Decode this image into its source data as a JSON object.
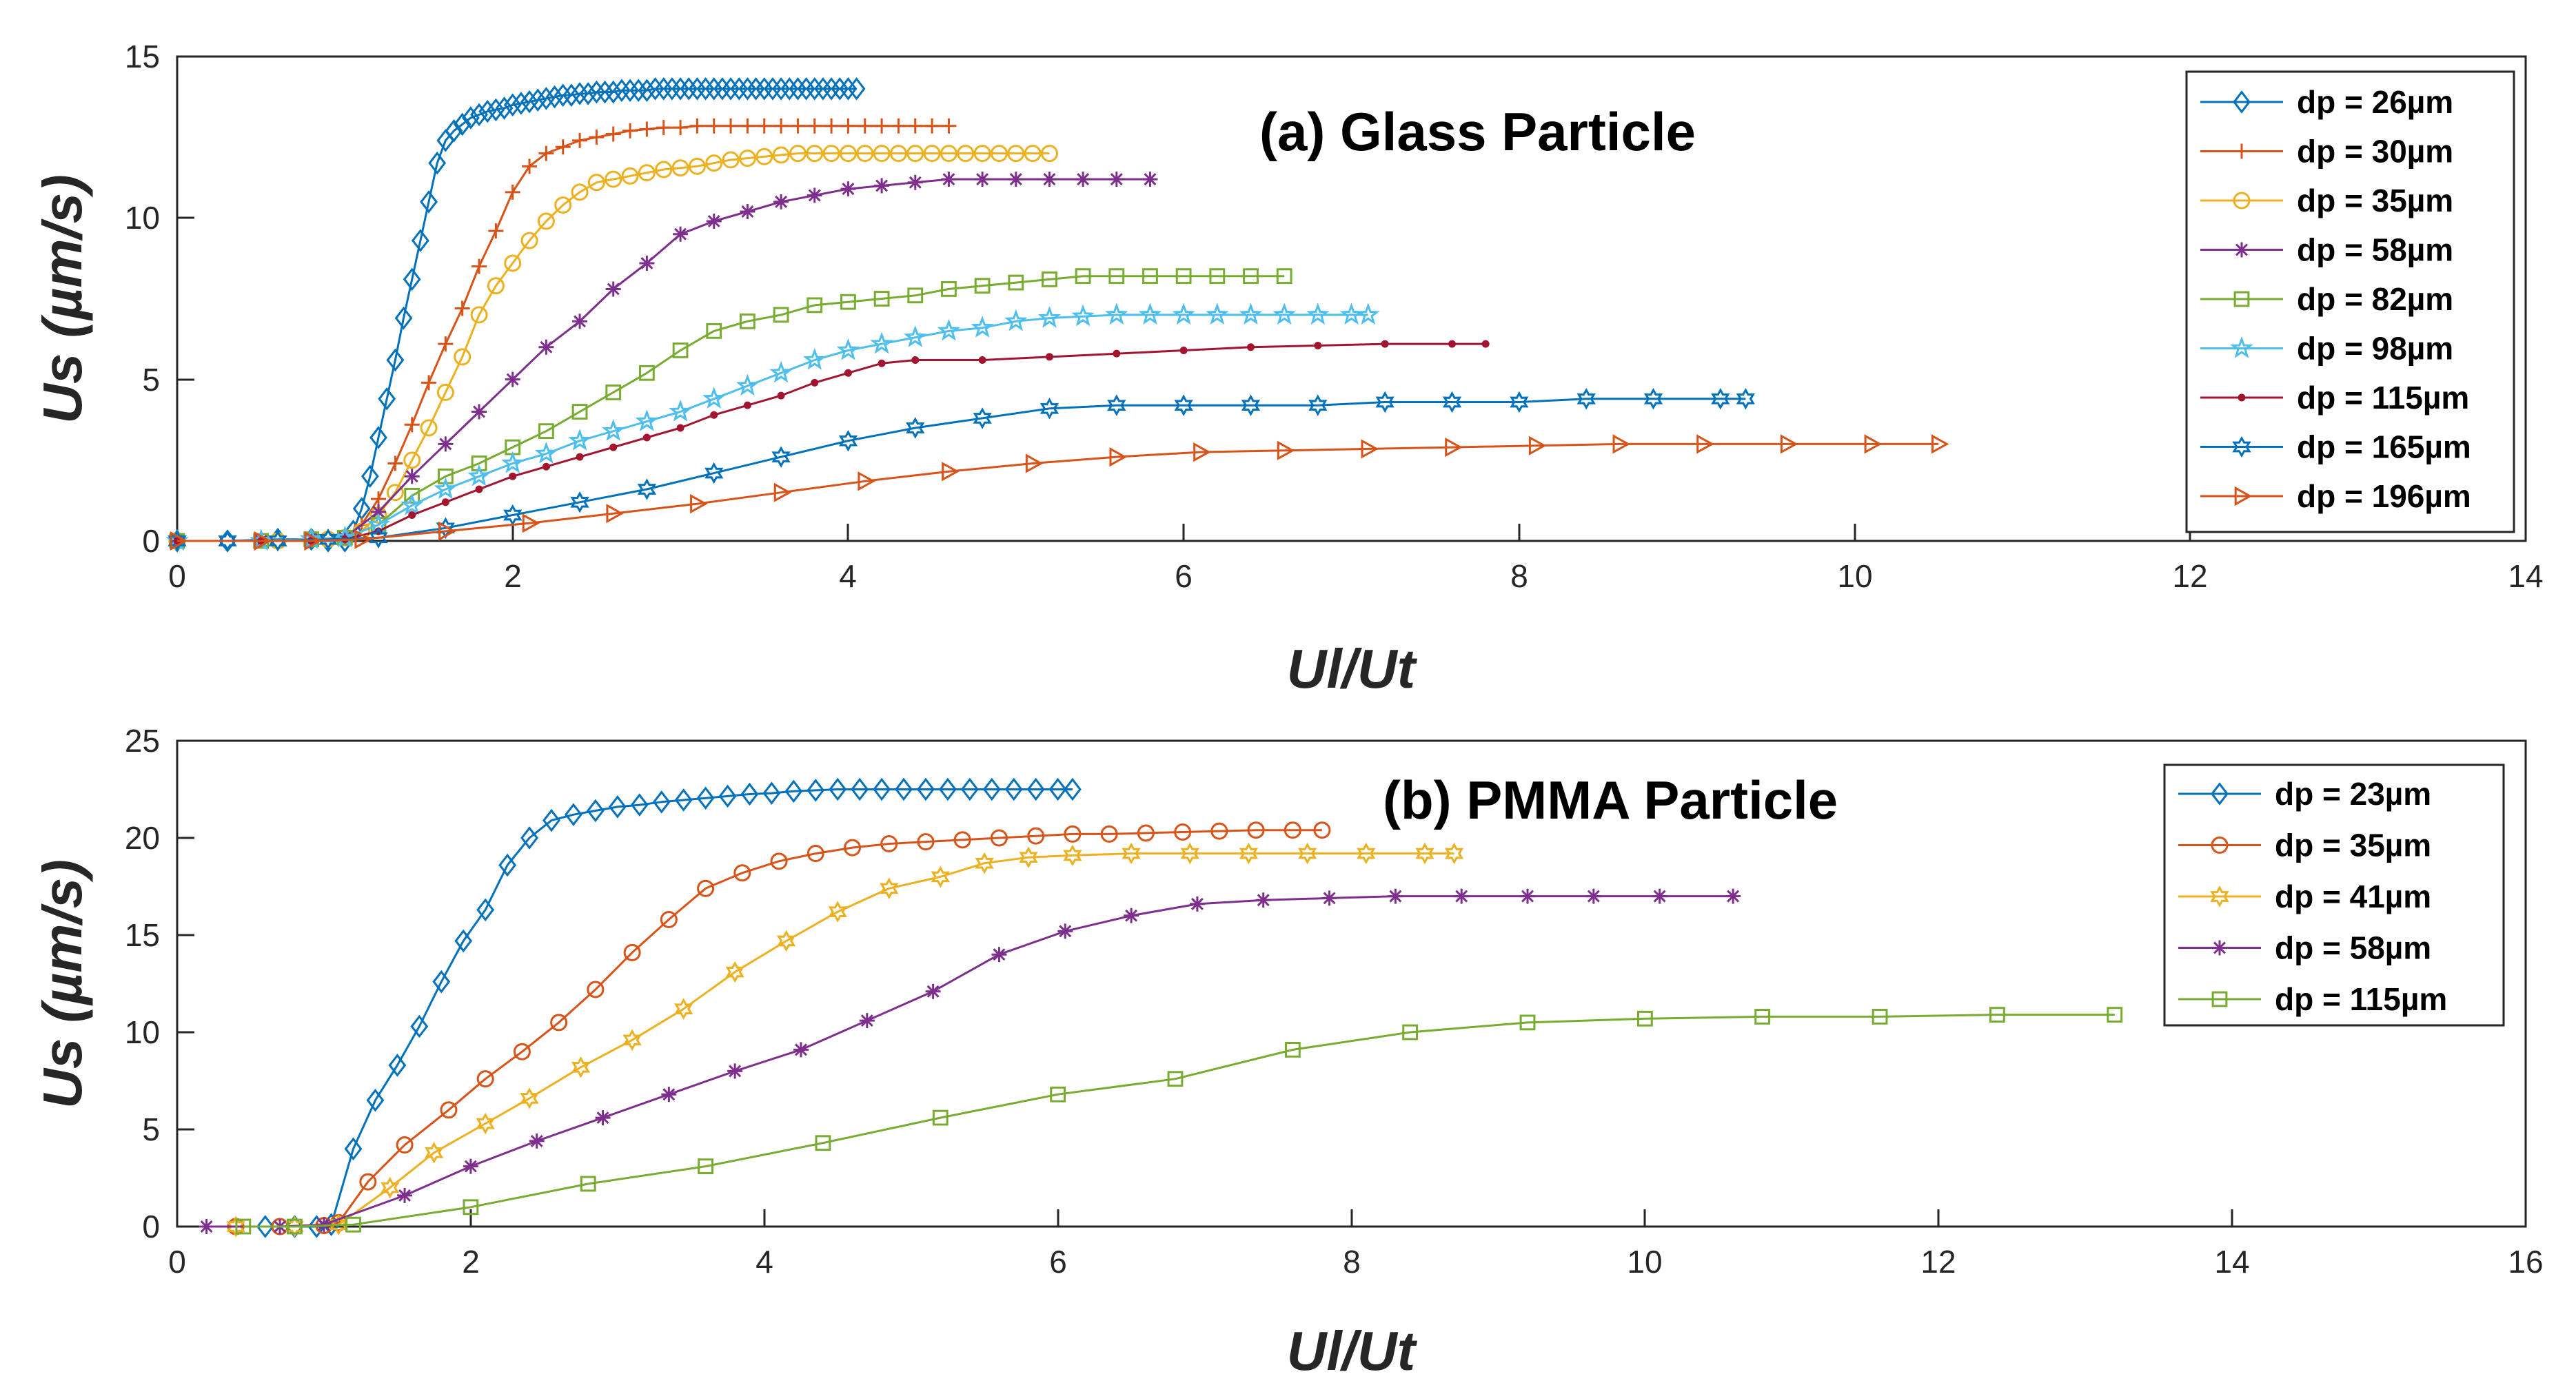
{
  "chart_data": [
    {
      "type": "line",
      "title": "(a) Glass Particle",
      "xlabel": "Ul/Ut",
      "ylabel": "Us (µm/s)",
      "xlim": [
        0,
        14
      ],
      "ylim": [
        0,
        15
      ],
      "xticks": [
        "0",
        "2",
        "4",
        "6",
        "8",
        "10",
        "12",
        "14"
      ],
      "yticks": [
        "0",
        "5",
        "10",
        "15"
      ],
      "legend_position": "top-right",
      "series": [
        {
          "name": "dp = 26µm",
          "color": "#0072BD",
          "marker": "diamond",
          "x": [
            0.0,
            0.3,
            0.6,
            0.8,
            0.9,
            1.0,
            1.05,
            1.1,
            1.15,
            1.2,
            1.25,
            1.3,
            1.35,
            1.4,
            1.45,
            1.5,
            1.55,
            1.6,
            1.65,
            1.7,
            1.75,
            1.8,
            1.85,
            1.9,
            1.95,
            2.0,
            2.05,
            2.1,
            2.15,
            2.2,
            2.25,
            2.3,
            2.35,
            2.4,
            2.45,
            2.5,
            2.55,
            2.6,
            2.65,
            2.7,
            2.75,
            2.8,
            2.85,
            2.9,
            2.95,
            3.0,
            3.05,
            3.1,
            3.15,
            3.2,
            3.25,
            3.3,
            3.35,
            3.4,
            3.45,
            3.5,
            3.55,
            3.6,
            3.65,
            3.7,
            3.75,
            3.8,
            3.85,
            3.9,
            3.95,
            4.0,
            4.05
          ],
          "y": [
            0.0,
            0.0,
            0.05,
            0.05,
            0.0,
            0.0,
            0.3,
            1.0,
            2.0,
            3.2,
            4.4,
            5.6,
            6.9,
            8.1,
            9.3,
            10.5,
            11.7,
            12.4,
            12.7,
            12.9,
            13.1,
            13.2,
            13.3,
            13.35,
            13.4,
            13.5,
            13.55,
            13.6,
            13.65,
            13.7,
            13.75,
            13.8,
            13.8,
            13.85,
            13.85,
            13.9,
            13.9,
            13.9,
            13.95,
            13.95,
            13.95,
            13.95,
            14.0,
            14.0,
            14.0,
            14.0,
            14.0,
            14.0,
            14.0,
            14.0,
            14.0,
            14.0,
            14.0,
            14.0,
            14.0,
            14.0,
            14.0,
            14.0,
            14.0,
            14.0,
            14.0,
            14.0,
            14.0,
            14.0,
            14.0,
            14.0,
            14.0
          ]
        },
        {
          "name": "dp = 30µm",
          "color": "#D95319",
          "marker": "plus",
          "x": [
            0.0,
            0.5,
            0.8,
            1.0,
            1.1,
            1.2,
            1.3,
            1.4,
            1.5,
            1.6,
            1.7,
            1.8,
            1.9,
            2.0,
            2.1,
            2.2,
            2.3,
            2.4,
            2.5,
            2.6,
            2.7,
            2.8,
            2.9,
            3.0,
            3.1,
            3.2,
            3.3,
            3.4,
            3.5,
            3.6,
            3.7,
            3.8,
            3.9,
            4.0,
            4.1,
            4.2,
            4.3,
            4.4,
            4.5,
            4.6
          ],
          "y": [
            0.0,
            0.0,
            0.05,
            0.1,
            0.5,
            1.3,
            2.4,
            3.6,
            4.9,
            6.1,
            7.2,
            8.5,
            9.6,
            10.8,
            11.6,
            12.0,
            12.2,
            12.4,
            12.5,
            12.6,
            12.7,
            12.75,
            12.8,
            12.8,
            12.85,
            12.85,
            12.85,
            12.85,
            12.85,
            12.85,
            12.85,
            12.85,
            12.85,
            12.85,
            12.85,
            12.85,
            12.85,
            12.85,
            12.85,
            12.85
          ]
        },
        {
          "name": "dp = 35µm",
          "color": "#EDB120",
          "marker": "circle",
          "x": [
            0.0,
            0.6,
            0.9,
            1.0,
            1.1,
            1.2,
            1.3,
            1.4,
            1.5,
            1.6,
            1.7,
            1.8,
            1.9,
            2.0,
            2.1,
            2.2,
            2.3,
            2.4,
            2.5,
            2.6,
            2.7,
            2.8,
            2.9,
            3.0,
            3.1,
            3.2,
            3.3,
            3.4,
            3.5,
            3.6,
            3.7,
            3.8,
            3.9,
            4.0,
            4.1,
            4.2,
            4.3,
            4.4,
            4.5,
            4.6,
            4.7,
            4.8,
            4.9,
            5.0,
            5.1,
            5.2
          ],
          "y": [
            0.0,
            0.0,
            0.05,
            0.1,
            0.3,
            0.8,
            1.5,
            2.5,
            3.5,
            4.6,
            5.7,
            7.0,
            7.9,
            8.6,
            9.3,
            9.9,
            10.4,
            10.8,
            11.1,
            11.2,
            11.3,
            11.4,
            11.5,
            11.55,
            11.6,
            11.7,
            11.8,
            11.85,
            11.9,
            11.95,
            12.0,
            12.0,
            12.0,
            12.0,
            12.0,
            12.0,
            12.0,
            12.0,
            12.0,
            12.0,
            12.0,
            12.0,
            12.0,
            12.0,
            12.0,
            12.0
          ]
        },
        {
          "name": "dp = 58µm",
          "color": "#7E2F8E",
          "marker": "asterisk",
          "x": [
            0.0,
            0.5,
            0.8,
            1.0,
            1.2,
            1.4,
            1.6,
            1.8,
            2.0,
            2.2,
            2.4,
            2.6,
            2.8,
            3.0,
            3.2,
            3.4,
            3.6,
            3.8,
            4.0,
            4.2,
            4.4,
            4.6,
            4.8,
            5.0,
            5.2,
            5.4,
            5.6,
            5.8
          ],
          "y": [
            0.0,
            0.0,
            0.05,
            0.1,
            0.9,
            2.0,
            3.0,
            4.0,
            5.0,
            6.0,
            6.8,
            7.8,
            8.6,
            9.5,
            9.9,
            10.2,
            10.5,
            10.7,
            10.9,
            11.0,
            11.1,
            11.2,
            11.2,
            11.2,
            11.2,
            11.2,
            11.2,
            11.2
          ]
        },
        {
          "name": "dp = 82µm",
          "color": "#77AC30",
          "marker": "square",
          "x": [
            0.0,
            0.5,
            0.8,
            1.0,
            1.2,
            1.4,
            1.6,
            1.8,
            2.0,
            2.2,
            2.4,
            2.6,
            2.8,
            3.0,
            3.2,
            3.4,
            3.6,
            3.8,
            4.0,
            4.2,
            4.4,
            4.6,
            4.8,
            5.0,
            5.2,
            5.4,
            5.6,
            5.8,
            6.0,
            6.2,
            6.4,
            6.6
          ],
          "y": [
            0.0,
            0.0,
            0.05,
            0.1,
            0.5,
            1.4,
            2.0,
            2.4,
            2.9,
            3.4,
            4.0,
            4.6,
            5.2,
            5.9,
            6.5,
            6.8,
            7.0,
            7.3,
            7.4,
            7.5,
            7.6,
            7.8,
            7.9,
            8.0,
            8.1,
            8.2,
            8.2,
            8.2,
            8.2,
            8.2,
            8.2,
            8.2
          ]
        },
        {
          "name": "dp = 98µm",
          "color": "#4DBEEE",
          "marker": "star",
          "x": [
            0.0,
            0.5,
            0.8,
            1.0,
            1.2,
            1.4,
            1.6,
            1.8,
            2.0,
            2.2,
            2.4,
            2.6,
            2.8,
            3.0,
            3.2,
            3.4,
            3.6,
            3.8,
            4.0,
            4.2,
            4.4,
            4.6,
            4.8,
            5.0,
            5.2,
            5.4,
            5.6,
            5.8,
            6.0,
            6.2,
            6.4,
            6.6,
            6.8,
            7.0,
            7.1
          ],
          "y": [
            0.0,
            0.0,
            0.05,
            0.1,
            0.5,
            1.1,
            1.6,
            2.0,
            2.4,
            2.7,
            3.1,
            3.4,
            3.7,
            4.0,
            4.4,
            4.8,
            5.2,
            5.6,
            5.9,
            6.1,
            6.3,
            6.5,
            6.6,
            6.8,
            6.9,
            6.95,
            7.0,
            7.0,
            7.0,
            7.0,
            7.0,
            7.0,
            7.0,
            7.0,
            7.0
          ]
        },
        {
          "name": "dp = 115µm",
          "color": "#A2142F",
          "marker": "point",
          "x": [
            0.0,
            0.5,
            0.8,
            1.0,
            1.2,
            1.4,
            1.6,
            1.8,
            2.0,
            2.2,
            2.4,
            2.6,
            2.8,
            3.0,
            3.2,
            3.4,
            3.6,
            3.8,
            4.0,
            4.2,
            4.4,
            4.8,
            5.2,
            5.6,
            6.0,
            6.4,
            6.8,
            7.2,
            7.6,
            7.8
          ],
          "y": [
            0.0,
            0.0,
            0.0,
            0.05,
            0.3,
            0.8,
            1.2,
            1.6,
            2.0,
            2.3,
            2.6,
            2.9,
            3.2,
            3.5,
            3.9,
            4.2,
            4.5,
            4.9,
            5.2,
            5.5,
            5.6,
            5.6,
            5.7,
            5.8,
            5.9,
            6.0,
            6.05,
            6.1,
            6.1,
            6.1
          ]
        },
        {
          "name": "dp = 165µm",
          "color": "#0072BD",
          "marker": "hexagram",
          "x": [
            0.0,
            0.3,
            0.6,
            0.9,
            1.2,
            1.6,
            2.0,
            2.4,
            2.8,
            3.2,
            3.6,
            4.0,
            4.4,
            4.8,
            5.2,
            5.6,
            6.0,
            6.4,
            6.8,
            7.2,
            7.6,
            8.0,
            8.4,
            8.8,
            9.2,
            9.35
          ],
          "y": [
            0.0,
            0.0,
            0.0,
            0.05,
            0.1,
            0.4,
            0.8,
            1.2,
            1.6,
            2.1,
            2.6,
            3.1,
            3.5,
            3.8,
            4.1,
            4.2,
            4.2,
            4.2,
            4.2,
            4.3,
            4.3,
            4.3,
            4.4,
            4.4,
            4.4,
            4.4
          ]
        },
        {
          "name": "dp = 196µm",
          "color": "#D95319",
          "marker": "triangle-right",
          "x": [
            0.0,
            0.5,
            0.8,
            1.1,
            1.6,
            2.1,
            2.6,
            3.1,
            3.6,
            4.1,
            4.6,
            5.1,
            5.6,
            6.1,
            6.6,
            7.1,
            7.6,
            8.1,
            8.6,
            9.1,
            9.6,
            10.1,
            10.5
          ],
          "y": [
            0.0,
            0.0,
            0.0,
            0.05,
            0.3,
            0.55,
            0.85,
            1.15,
            1.5,
            1.85,
            2.15,
            2.4,
            2.6,
            2.75,
            2.8,
            2.85,
            2.9,
            2.95,
            3.0,
            3.0,
            3.0,
            3.0,
            3.0
          ]
        }
      ]
    },
    {
      "type": "line",
      "title": "(b) PMMA Particle",
      "xlabel": "Ul/Ut",
      "ylabel": "Us (µm/s)",
      "xlim": [
        0,
        16
      ],
      "ylim": [
        0,
        25
      ],
      "xticks": [
        "0",
        "2",
        "4",
        "6",
        "8",
        "10",
        "12",
        "14",
        "16"
      ],
      "yticks": [
        "0",
        "5",
        "10",
        "15",
        "20",
        "25"
      ],
      "legend_position": "top-right",
      "series": [
        {
          "name": "dp = 23µm",
          "color": "#0072BD",
          "marker": "diamond",
          "x": [
            0.6,
            0.8,
            0.95,
            1.05,
            1.2,
            1.35,
            1.5,
            1.65,
            1.8,
            1.95,
            2.1,
            2.25,
            2.4,
            2.55,
            2.7,
            2.85,
            3.0,
            3.15,
            3.3,
            3.45,
            3.6,
            3.75,
            3.9,
            4.05,
            4.2,
            4.35,
            4.5,
            4.65,
            4.8,
            4.95,
            5.1,
            5.25,
            5.4,
            5.55,
            5.7,
            5.85,
            6.0,
            6.1
          ],
          "y": [
            0.0,
            0.0,
            0.0,
            0.1,
            4.0,
            6.5,
            8.3,
            10.3,
            12.6,
            14.7,
            16.3,
            18.6,
            20.0,
            20.9,
            21.2,
            21.4,
            21.6,
            21.7,
            21.85,
            21.95,
            22.05,
            22.15,
            22.25,
            22.3,
            22.4,
            22.45,
            22.5,
            22.5,
            22.5,
            22.5,
            22.5,
            22.5,
            22.5,
            22.5,
            22.5,
            22.5,
            22.5,
            22.5
          ]
        },
        {
          "name": "dp = 35µm",
          "color": "#D95319",
          "marker": "circle",
          "x": [
            0.4,
            0.7,
            1.0,
            1.1,
            1.3,
            1.55,
            1.85,
            2.1,
            2.35,
            2.6,
            2.85,
            3.1,
            3.35,
            3.6,
            3.85,
            4.1,
            4.35,
            4.6,
            4.85,
            5.1,
            5.35,
            5.6,
            5.85,
            6.1,
            6.35,
            6.6,
            6.85,
            7.1,
            7.35,
            7.6,
            7.8
          ],
          "y": [
            0.0,
            0.0,
            0.05,
            0.2,
            2.3,
            4.2,
            6.0,
            7.6,
            9.0,
            10.5,
            12.2,
            14.1,
            15.8,
            17.4,
            18.2,
            18.8,
            19.2,
            19.5,
            19.7,
            19.8,
            19.9,
            20.0,
            20.1,
            20.2,
            20.2,
            20.25,
            20.3,
            20.35,
            20.4,
            20.4,
            20.4
          ]
        },
        {
          "name": "dp = 41µm",
          "color": "#EDB120",
          "marker": "hexagram",
          "x": [
            0.4,
            0.8,
            1.1,
            1.45,
            1.75,
            2.1,
            2.4,
            2.75,
            3.1,
            3.45,
            3.8,
            4.15,
            4.5,
            4.85,
            5.2,
            5.5,
            5.8,
            6.1,
            6.5,
            6.9,
            7.3,
            7.7,
            8.1,
            8.5,
            8.7
          ],
          "y": [
            0.0,
            0.0,
            0.1,
            2.0,
            3.8,
            5.3,
            6.6,
            8.2,
            9.6,
            11.2,
            13.1,
            14.7,
            16.2,
            17.4,
            18.0,
            18.7,
            19.0,
            19.1,
            19.2,
            19.2,
            19.2,
            19.2,
            19.2,
            19.2,
            19.2
          ]
        },
        {
          "name": "dp = 58µm",
          "color": "#7E2F8E",
          "marker": "asterisk",
          "x": [
            0.2,
            0.7,
            1.0,
            1.55,
            2.0,
            2.45,
            2.9,
            3.35,
            3.8,
            4.25,
            4.7,
            5.15,
            5.6,
            6.05,
            6.5,
            6.95,
            7.4,
            7.85,
            8.3,
            8.75,
            9.2,
            9.65,
            10.1,
            10.6
          ],
          "y": [
            0.0,
            0.0,
            0.1,
            1.6,
            3.1,
            4.4,
            5.6,
            6.8,
            8.0,
            9.1,
            10.6,
            12.1,
            14.0,
            15.2,
            16.0,
            16.6,
            16.8,
            16.9,
            17.0,
            17.0,
            17.0,
            17.0,
            17.0,
            17.0
          ]
        },
        {
          "name": "dp = 115µm",
          "color": "#77AC30",
          "marker": "square",
          "x": [
            0.45,
            0.8,
            1.2,
            2.0,
            2.8,
            3.6,
            4.4,
            5.2,
            6.0,
            6.8,
            7.6,
            8.4,
            9.2,
            10.0,
            10.8,
            11.6,
            12.4,
            13.2
          ],
          "y": [
            0.0,
            0.0,
            0.1,
            1.0,
            2.2,
            3.1,
            4.3,
            5.6,
            6.8,
            7.6,
            9.1,
            10.0,
            10.5,
            10.7,
            10.8,
            10.8,
            10.9,
            10.9
          ]
        }
      ]
    }
  ]
}
